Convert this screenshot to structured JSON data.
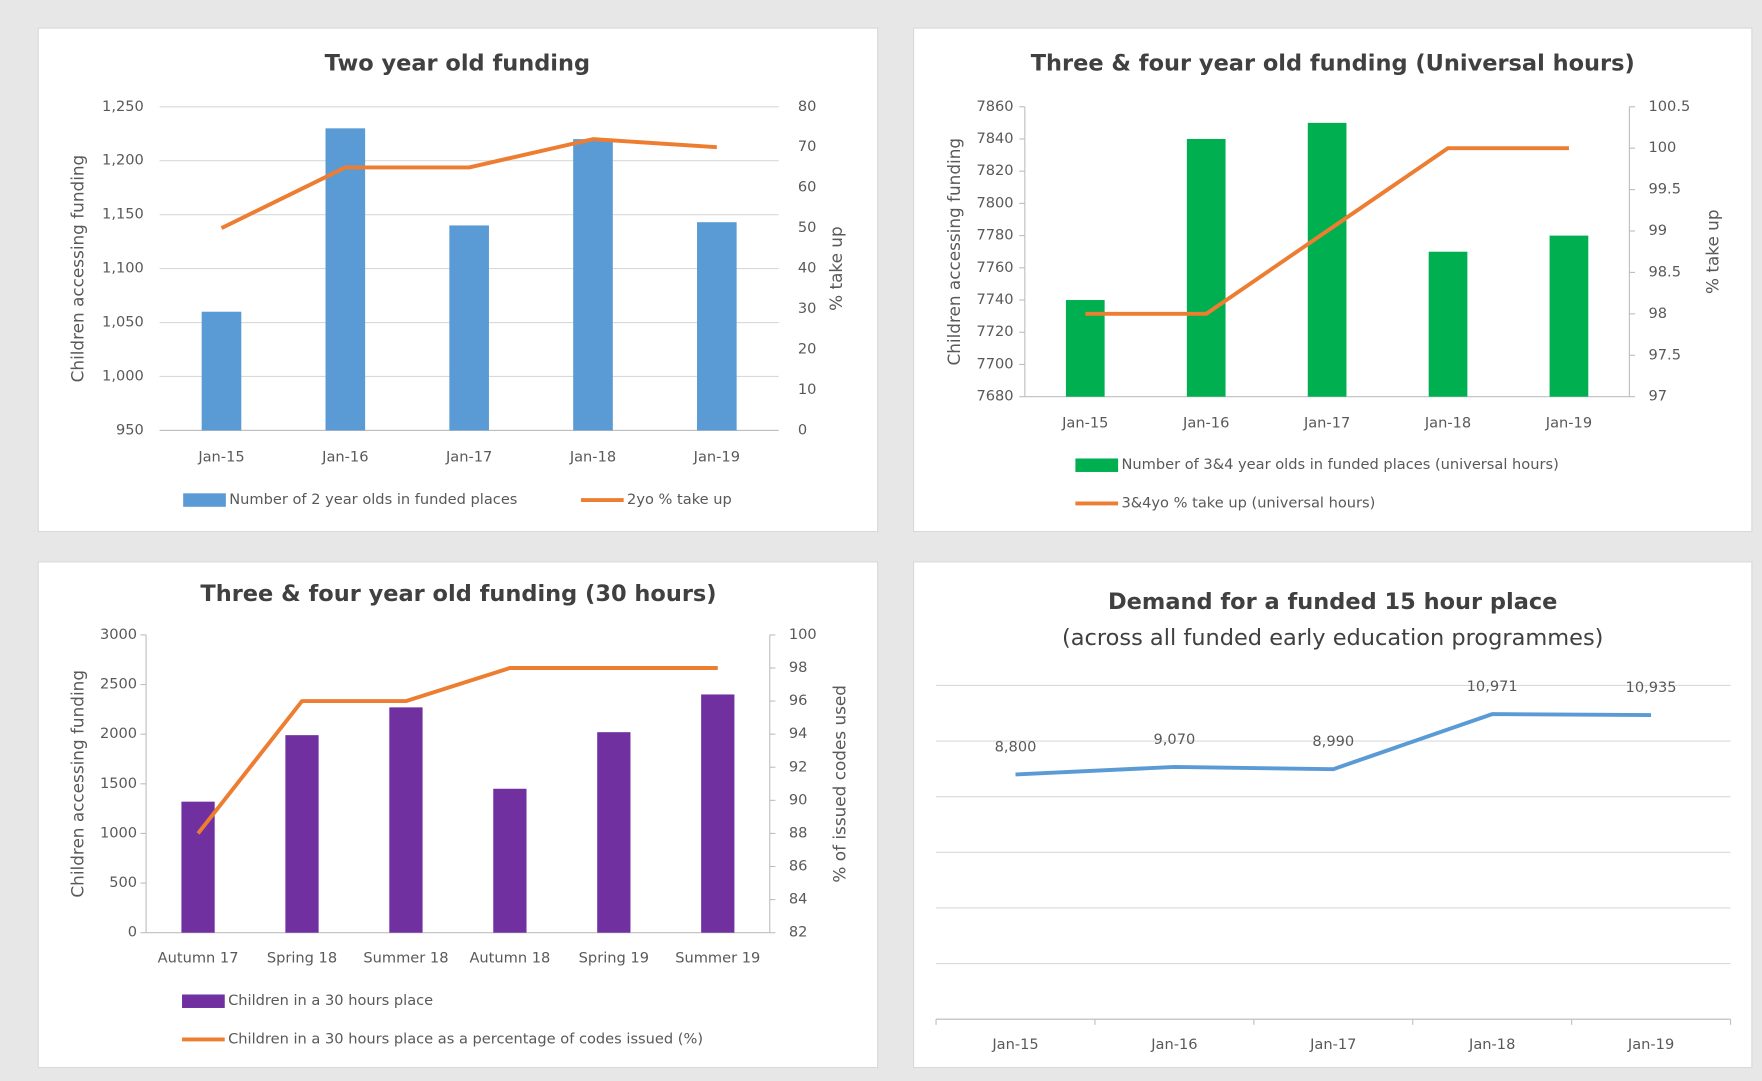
{
  "chart_data": [
    {
      "type": "bar",
      "title": "Two year old funding",
      "categories": [
        "Jan-15",
        "Jan-16",
        "Jan-17",
        "Jan-18",
        "Jan-19"
      ],
      "series": [
        {
          "name": "Number of 2 year olds in funded places",
          "color": "#5b9bd5",
          "values": [
            1060,
            1230,
            1140,
            1220,
            1143
          ]
        },
        {
          "name": "2yo % take up",
          "color": "#ed7d31",
          "axis": "y2",
          "values": [
            50,
            65,
            65,
            72,
            70
          ]
        }
      ],
      "ylabel": "Children accessing funding",
      "y2label": "% take up",
      "ylim": [
        950,
        1250
      ],
      "yticks": [
        950,
        {
          "value": 1000,
          "label": "1,000"
        },
        {
          "value": 1050,
          "label": "1,050"
        },
        {
          "value": 1100,
          "label": "1,100"
        },
        {
          "value": 1150,
          "label": "1,150"
        },
        {
          "value": 1200,
          "label": "1,200"
        },
        {
          "value": 1250,
          "label": "1,250"
        }
      ],
      "y2lim": [
        0,
        80
      ],
      "y2ticks": [
        0,
        10,
        20,
        30,
        40,
        50,
        60,
        70,
        80
      ],
      "grid": true,
      "legend": "bottom"
    },
    {
      "type": "bar",
      "title": "Three & four year old funding (Universal hours)",
      "categories": [
        "Jan-15",
        "Jan-16",
        "Jan-17",
        "Jan-18",
        "Jan-19"
      ],
      "series": [
        {
          "name": "Number of 3&4 year olds in funded places (universal hours)",
          "color": "#00b050",
          "values": [
            7740,
            7840,
            7850,
            7770,
            7780
          ]
        },
        {
          "name": "3&4yo % take up (universal hours)",
          "color": "#ed7d31",
          "axis": "y2",
          "values": [
            98,
            98,
            99,
            100,
            100
          ]
        }
      ],
      "ylabel": "Children accessing funding",
      "y2label": "% take up",
      "ylim": [
        7680,
        7860
      ],
      "yticks": [
        7680,
        7700,
        7720,
        7740,
        7760,
        7780,
        7800,
        7820,
        7840,
        7860
      ],
      "y2lim": [
        97,
        100.5
      ],
      "y2ticks": [
        97,
        97.5,
        98,
        98.5,
        99,
        99.5,
        100,
        100.5
      ],
      "grid": false,
      "legend": "bottom"
    },
    {
      "type": "bar",
      "title": "Three & four year old funding (30 hours)",
      "categories": [
        "Autumn 17",
        "Spring 18",
        "Summer 18",
        "Autumn 18",
        "Spring 19",
        "Summer 19"
      ],
      "series": [
        {
          "name": "Children in a 30 hours place",
          "color": "#7030a0",
          "values": [
            1320,
            1990,
            2270,
            1450,
            2020,
            2400
          ]
        },
        {
          "name": "Children in a 30 hours place as a percentage of codes issued (%)",
          "color": "#ed7d31",
          "axis": "y2",
          "values": [
            88,
            96,
            96,
            98,
            98,
            98
          ]
        }
      ],
      "ylabel": "Children accessing funding",
      "y2label": "% of issued codes used",
      "ylim": [
        0,
        3000
      ],
      "yticks": [
        0,
        500,
        1000,
        1500,
        2000,
        2500,
        3000
      ],
      "y2lim": [
        82,
        100
      ],
      "y2ticks": [
        82,
        84,
        86,
        88,
        90,
        92,
        94,
        96,
        98,
        100
      ],
      "grid": false,
      "legend": "bottom"
    },
    {
      "type": "line",
      "title": "Demand for a funded 15 hour place",
      "subtitle": "(across all funded early education programmes)",
      "categories": [
        "Jan-15",
        "Jan-16",
        "Jan-17",
        "Jan-18",
        "Jan-19"
      ],
      "series": [
        {
          "color": "#5b9bd5",
          "values": [
            8800,
            9070,
            8990,
            10971,
            10935
          ],
          "value_labels": [
            "8,800",
            "9,070",
            "8,990",
            "10,971",
            "10,935"
          ]
        }
      ],
      "ylim": [
        0,
        12000
      ],
      "yticks": [
        0,
        2000,
        4000,
        6000,
        8000,
        10000,
        12000
      ],
      "ytick_labels": false,
      "grid": true
    }
  ]
}
